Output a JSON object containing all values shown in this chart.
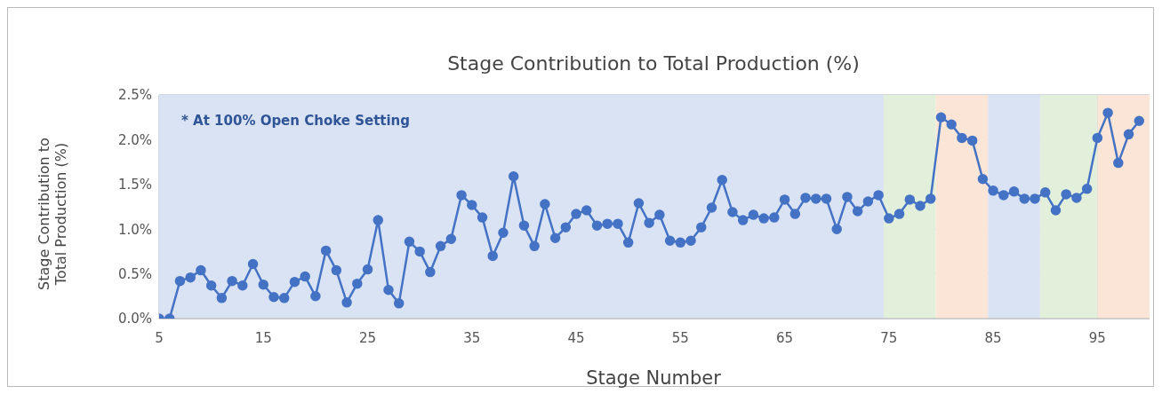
{
  "chart_data": {
    "type": "line",
    "title": "Stage Contribution to Total Production (%)",
    "xlabel": "Stage Number",
    "ylabel": "Stage Contribution to Total Production (%)",
    "annotations": [
      "* At 100% Open Choke Setting"
    ],
    "x": [
      5,
      6,
      7,
      8,
      9,
      10,
      11,
      12,
      13,
      14,
      15,
      16,
      17,
      18,
      19,
      20,
      21,
      22,
      23,
      24,
      25,
      26,
      27,
      28,
      29,
      30,
      31,
      32,
      33,
      34,
      35,
      36,
      37,
      38,
      39,
      40,
      41,
      42,
      43,
      44,
      45,
      46,
      47,
      48,
      49,
      50,
      51,
      52,
      53,
      54,
      55,
      56,
      57,
      58,
      59,
      60,
      61,
      62,
      63,
      64,
      65,
      66,
      67,
      68,
      69,
      70,
      71,
      72,
      73,
      74,
      75,
      76,
      77,
      78,
      79,
      80,
      81,
      82,
      83,
      84,
      85,
      86,
      87,
      88,
      89,
      90,
      91,
      92,
      93,
      94,
      95,
      96,
      97,
      98,
      99
    ],
    "series": [
      {
        "color": "#4472c4",
        "values": [
          0,
          0,
          0.42,
          0.46,
          0.54,
          0.37,
          0.23,
          0.42,
          0.37,
          0.61,
          0.38,
          0.24,
          0.23,
          0.41,
          0.47,
          0.25,
          0.76,
          0.54,
          0.18,
          0.39,
          0.55,
          1.1,
          0.32,
          0.17,
          0.86,
          0.75,
          0.52,
          0.81,
          0.89,
          1.38,
          1.27,
          1.13,
          0.7,
          0.96,
          1.59,
          1.04,
          0.81,
          1.28,
          0.9,
          1.02,
          1.17,
          1.21,
          1.04,
          1.06,
          1.06,
          0.85,
          1.29,
          1.07,
          1.16,
          0.87,
          0.85,
          0.87,
          1.02,
          1.24,
          1.55,
          1.19,
          1.1,
          1.16,
          1.12,
          1.13,
          1.33,
          1.17,
          1.35,
          1.34,
          1.34,
          1.0,
          1.36,
          1.2,
          1.31,
          1.38,
          1.12,
          1.17,
          1.33,
          1.26,
          1.34,
          2.25,
          2.17,
          2.02,
          1.99,
          1.56,
          1.43,
          1.38,
          1.42,
          1.34,
          1.34,
          1.41,
          1.21,
          1.39,
          1.35,
          1.45,
          2.02,
          2.3,
          1.74,
          2.06,
          2.21
        ]
      }
    ],
    "xlim": [
      5,
      100
    ],
    "xticks": [
      5,
      15,
      25,
      35,
      45,
      55,
      65,
      75,
      85,
      95
    ],
    "ylim": [
      0,
      2.5
    ],
    "yticks": [
      {
        "value": 0,
        "label": "0.0%"
      },
      {
        "value": 0.5,
        "label": "0.5%"
      },
      {
        "value": 1,
        "label": "1.0%"
      },
      {
        "value": 1.5,
        "label": "1.5%"
      },
      {
        "value": 2,
        "label": "2.0%"
      },
      {
        "value": 2.5,
        "label": "2.5%"
      }
    ],
    "bands": [
      {
        "axis": "x",
        "from": 5,
        "to": 74.5,
        "color": "#dae3f3"
      },
      {
        "axis": "x",
        "from": 74.5,
        "to": 79.5,
        "color": "#e2efda"
      },
      {
        "axis": "x",
        "from": 79.5,
        "to": 84.5,
        "color": "#fbe5d6"
      },
      {
        "axis": "x",
        "from": 84.5,
        "to": 89.5,
        "color": "#dae3f3"
      },
      {
        "axis": "x",
        "from": 89.5,
        "to": 95,
        "color": "#e2efda"
      },
      {
        "axis": "x",
        "from": 95,
        "to": 100,
        "color": "#fbe5d6"
      }
    ],
    "grid": true,
    "marker": "circle",
    "line_style": "solid"
  }
}
